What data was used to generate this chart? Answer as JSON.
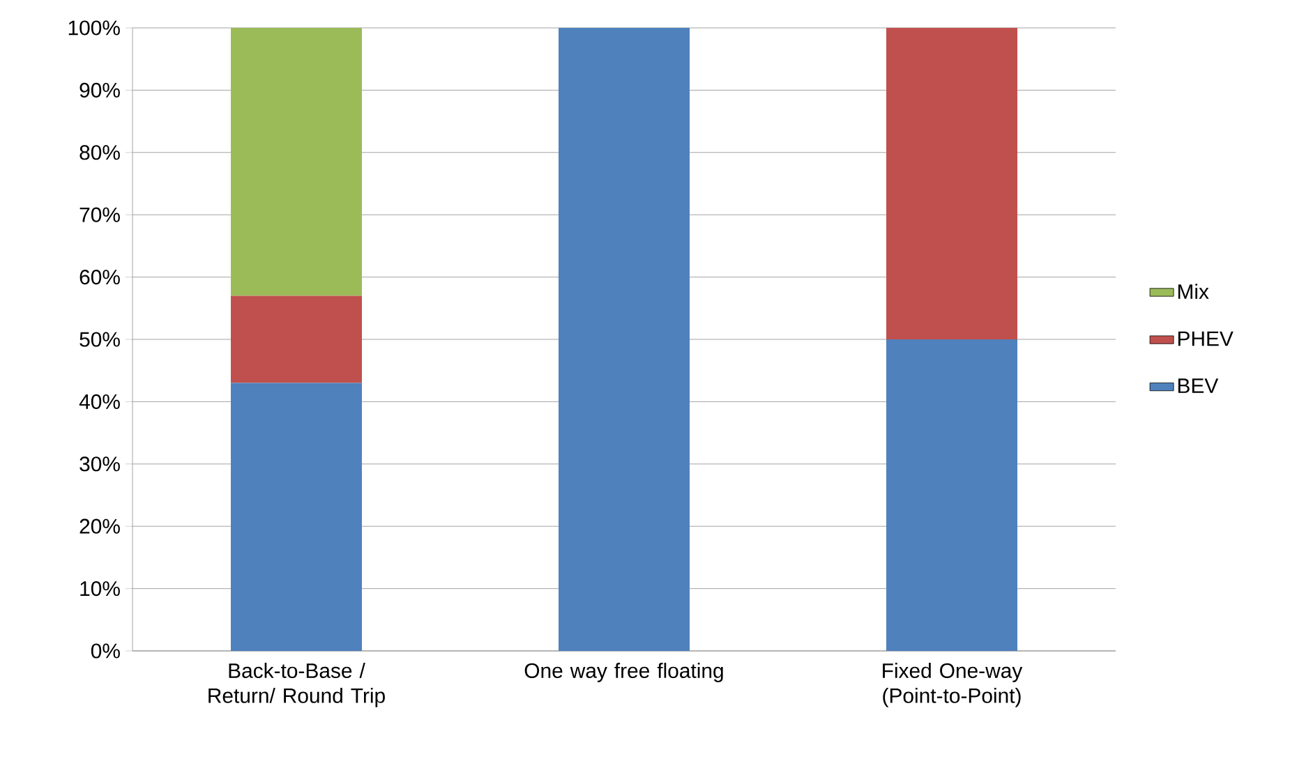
{
  "chart_data": {
    "type": "bar",
    "stacked": true,
    "categories": [
      "Back-to-Base / Return/ Round Trip",
      "One way free floating",
      "Fixed One-way (Point-to-Point)"
    ],
    "series": [
      {
        "name": "BEV",
        "color": "#4f81bd",
        "values": [
          43,
          100,
          50
        ]
      },
      {
        "name": "PHEV",
        "color": "#c0504d",
        "values": [
          14,
          0,
          50
        ]
      },
      {
        "name": "Mix",
        "color": "#9bbb59",
        "values": [
          43,
          0,
          0
        ]
      }
    ],
    "ylim": [
      0,
      100
    ],
    "yticks": [
      {
        "value": 0,
        "label": "0%"
      },
      {
        "value": 10,
        "label": "10%"
      },
      {
        "value": 20,
        "label": "20%"
      },
      {
        "value": 30,
        "label": "30%"
      },
      {
        "value": 40,
        "label": "40%"
      },
      {
        "value": 50,
        "label": "50%"
      },
      {
        "value": 60,
        "label": "60%"
      },
      {
        "value": 70,
        "label": "70%"
      },
      {
        "value": 80,
        "label": "80%"
      },
      {
        "value": 90,
        "label": "90%"
      },
      {
        "value": 100,
        "label": "100%"
      }
    ],
    "grid": "y",
    "legend": "right"
  }
}
